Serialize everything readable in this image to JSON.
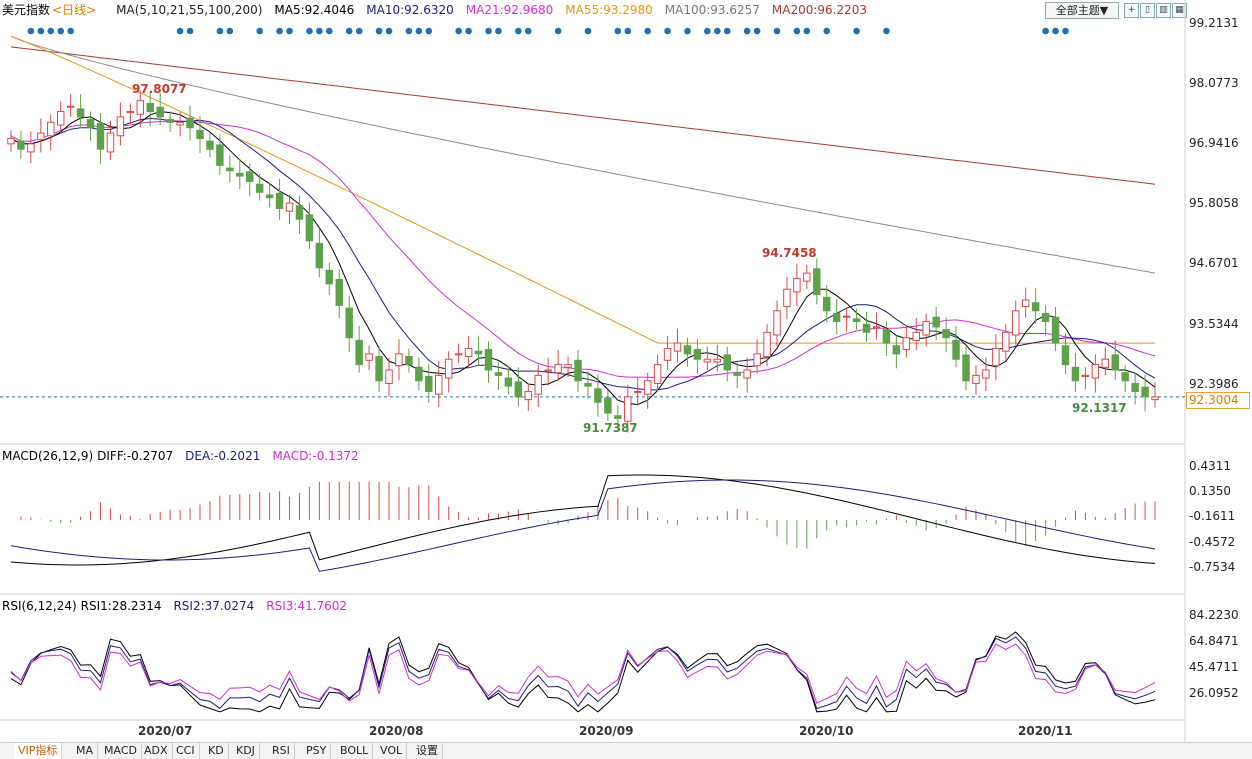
{
  "header": {
    "title": "美元指数",
    "period": "<日线>",
    "ma_label": "MA(5,10,21,55,100,200)",
    "ma5": "MA5:92.4046",
    "ma10": "MA10:92.6320",
    "ma21": "MA21:92.9680",
    "ma55": "MA55:93.2980",
    "ma100": "MA100:93.6257",
    "ma200": "MA200:96.2203",
    "theme_button": "全部主题▼"
  },
  "colors": {
    "up": "#d94a4a",
    "down": "#5fa14a",
    "ma5": "#000000",
    "ma10": "#1c1c80",
    "ma21": "#d12fd1",
    "ma55": "#e8931a",
    "ma100": "#8c8c8c",
    "ma200": "#a83a2e",
    "dot": "#1f6fb5",
    "last_price": "#e07b00"
  },
  "price_axis": [
    "99.2131",
    "98.0773",
    "96.9416",
    "95.8058",
    "94.6701",
    "93.5344",
    "92.3986"
  ],
  "last_price": "92.3004",
  "annotations": {
    "high1": "97.8077",
    "low1": "91.7387",
    "high2": "94.7458",
    "low2": "92.1317"
  },
  "macd_header": {
    "label": "MACD(26,12,9)",
    "diff": "DIFF:-0.2707",
    "dea": "DEA:-0.2021",
    "macd": "MACD:-0.1372"
  },
  "macd_axis": [
    "0.4311",
    "0.1350",
    "-0.1611",
    "-0.4572",
    "-0.7534"
  ],
  "rsi_header": {
    "label": "RSI(6,12,24)",
    "rsi1": "RSI1:28.2314",
    "rsi2": "RSI2:37.0274",
    "rsi3": "RSI3:41.7602"
  },
  "rsi_axis": [
    "84.2230",
    "64.8471",
    "45.4711",
    "26.0952"
  ],
  "date_axis": [
    "2020/07",
    "2020/08",
    "2020/09",
    "2020/10",
    "2020/11"
  ],
  "tabs": [
    "VIP指标",
    "MA",
    "MACD",
    "ADX",
    "CCI",
    "KD",
    "KDJ",
    "RSI",
    "PSY",
    "BOLL",
    "VOL",
    "设置"
  ],
  "chart_data": {
    "type": "candlestick",
    "title": "美元指数",
    "ylim": [
      91.5,
      99.3
    ],
    "x_ticks": [
      "2020/07",
      "2020/08",
      "2020/09",
      "2020/10",
      "2020/11"
    ],
    "ohlc_close_approx": [
      97.1,
      96.9,
      97.0,
      97.2,
      97.4,
      97.6,
      97.7,
      97.5,
      97.3,
      96.9,
      97.2,
      97.5,
      97.6,
      97.8,
      97.6,
      97.5,
      97.4,
      97.4,
      97.3,
      97.1,
      96.9,
      96.6,
      96.5,
      96.4,
      96.3,
      96.1,
      96.0,
      95.8,
      95.9,
      95.6,
      95.2,
      94.7,
      94.4,
      94.0,
      93.4,
      92.9,
      93.1,
      92.6,
      92.8,
      93.1,
      92.9,
      92.6,
      92.4,
      92.7,
      93.0,
      93.1,
      93.2,
      93.1,
      92.8,
      92.7,
      92.5,
      92.3,
      92.4,
      92.7,
      92.8,
      92.9,
      92.9,
      92.6,
      92.5,
      92.2,
      92.0,
      91.9,
      92.3,
      92.4,
      92.6,
      92.9,
      93.2,
      93.3,
      93.1,
      93.0,
      93.0,
      93.0,
      92.8,
      92.7,
      92.8,
      93.1,
      93.5,
      93.9,
      94.3,
      94.5,
      94.6,
      94.2,
      93.9,
      93.7,
      93.8,
      93.7,
      93.5,
      93.6,
      93.3,
      93.1,
      93.4,
      93.5,
      93.7,
      93.6,
      93.4,
      93.0,
      92.6,
      92.7,
      92.8,
      93.2,
      93.5,
      93.9,
      94.1,
      93.9,
      93.7,
      93.3,
      92.9,
      92.6,
      92.7,
      92.9,
      93.0,
      92.8,
      92.6,
      92.4,
      92.3,
      92.3
    ],
    "ma_legend": [
      "MA5:92.4046",
      "MA10:92.6320",
      "MA21:92.9680",
      "MA55:93.2980",
      "MA100:93.6257",
      "MA200:96.2203"
    ],
    "annotations": [
      {
        "label": "97.8077",
        "type": "high"
      },
      {
        "label": "91.7387",
        "type": "low"
      },
      {
        "label": "94.7458",
        "type": "high"
      },
      {
        "label": "92.1317",
        "type": "low"
      }
    ],
    "last": 92.3004
  }
}
